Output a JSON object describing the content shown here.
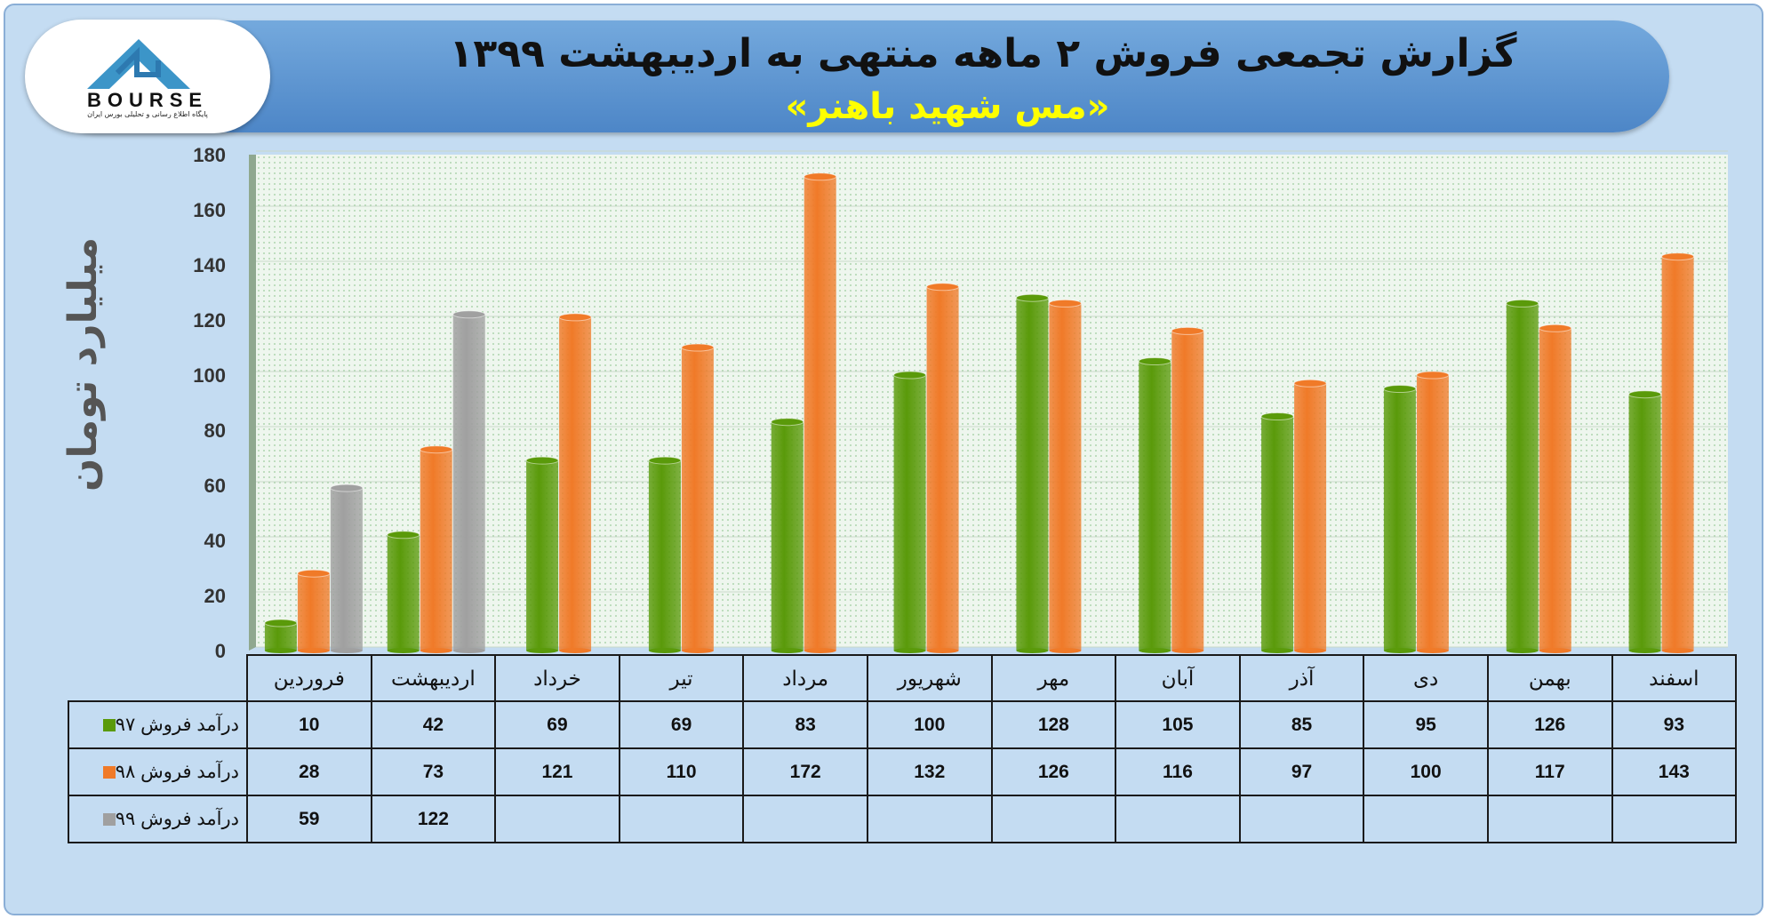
{
  "banner": {
    "title": "گزارش تجمعی فروش ۲ ماهه منتهی به اردیبهشت ۱۳۹۹",
    "subtitle": "«مس شهید باهنر»"
  },
  "logo": {
    "word": "BOURSE",
    "tagline": "پایگاه اطلاع رسانی و تحلیلی بورس ایران"
  },
  "chart_data": {
    "type": "bar",
    "ylabel": "میلیارد تومان",
    "ylim": [
      0,
      180
    ],
    "yticks": [
      0,
      20,
      40,
      60,
      80,
      100,
      120,
      140,
      160,
      180
    ],
    "categories": [
      "فروردین",
      "اردیبهشت",
      "خرداد",
      "تیر",
      "مرداد",
      "شهریور",
      "مهر",
      "آبان",
      "آذر",
      "دی",
      "بهمن",
      "اسفند"
    ],
    "series": [
      {
        "name": "درآمد فروش ۹۷",
        "color": "#5a9a0a",
        "values": [
          10,
          42,
          69,
          69,
          83,
          100,
          128,
          105,
          85,
          95,
          126,
          93
        ]
      },
      {
        "name": "درآمد فروش ۹۸",
        "color": "#f07a28",
        "values": [
          28,
          73,
          121,
          110,
          172,
          132,
          126,
          116,
          97,
          100,
          117,
          143
        ]
      },
      {
        "name": "درآمد فروش ۹۹",
        "color": "#a0a0a0",
        "values": [
          59,
          122,
          null,
          null,
          null,
          null,
          null,
          null,
          null,
          null,
          null,
          null
        ]
      }
    ],
    "grid": true,
    "legend": "data-table"
  }
}
